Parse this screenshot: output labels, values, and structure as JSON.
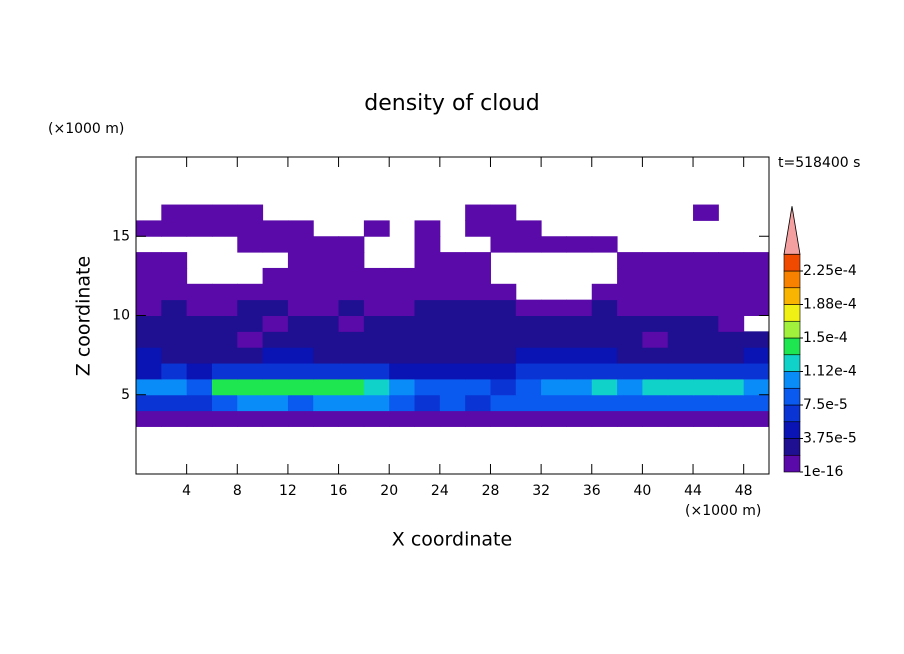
{
  "chart_data": {
    "type": "contour",
    "title": "density of cloud",
    "x_label": "X coordinate",
    "y_label": "Z coordinate",
    "x_unit": "(×1000 m)",
    "y_unit": "(×1000 m)",
    "time_label": "t=518400 s",
    "xlim": [
      0,
      50
    ],
    "ylim": [
      0,
      20
    ],
    "xticks": [
      4,
      8,
      12,
      16,
      20,
      24,
      28,
      32,
      36,
      40,
      44,
      48
    ],
    "yticks": [
      5,
      10,
      15
    ],
    "x": [
      1,
      3,
      5,
      7,
      9,
      11,
      13,
      15,
      17,
      19,
      21,
      23,
      25,
      27,
      29,
      31,
      33,
      35,
      37,
      39,
      41,
      43,
      45,
      47,
      49
    ],
    "z": [
      3.5,
      4.5,
      5.5,
      6.5,
      7.5,
      8.5,
      9.5,
      10.5,
      11.5,
      12.5,
      13.5,
      14.5,
      15.5,
      16.5
    ],
    "values": [
      [
        1e-05,
        1e-05,
        1e-05,
        1e-05,
        1e-05,
        1e-05,
        1e-05,
        1e-05,
        1e-05,
        1e-05,
        1e-05,
        1e-05,
        1e-05,
        1e-05,
        1e-05,
        1e-05,
        1e-05,
        1e-05,
        1e-05,
        1e-05,
        1e-05,
        1e-05,
        1e-05,
        1e-05,
        1e-05
      ],
      [
        6.5e-05,
        6.5e-05,
        6.5e-05,
        8.5e-05,
        0.000105,
        0.000105,
        8.5e-05,
        0.000105,
        0.000105,
        0.000105,
        8.5e-05,
        6.5e-05,
        8.5e-05,
        6.5e-05,
        8.5e-05,
        8.5e-05,
        8.5e-05,
        8.5e-05,
        8.5e-05,
        8.5e-05,
        8.5e-05,
        8.5e-05,
        8.5e-05,
        8.5e-05,
        8.5e-05
      ],
      [
        0.000105,
        0.000105,
        8.5e-05,
        0.00014,
        0.00014,
        0.00014,
        0.00014,
        0.00014,
        0.00014,
        0.000125,
        0.000105,
        8.5e-05,
        8.5e-05,
        8.5e-05,
        6.5e-05,
        8.5e-05,
        0.000105,
        0.000105,
        0.000125,
        0.000105,
        0.000125,
        0.000125,
        0.000125,
        0.000125,
        0.000105
      ],
      [
        4.5e-05,
        6.5e-05,
        4.5e-05,
        6.5e-05,
        6.5e-05,
        6.5e-05,
        6.5e-05,
        6.5e-05,
        6.5e-05,
        6.5e-05,
        4.5e-05,
        4.5e-05,
        4.5e-05,
        4.5e-05,
        4.5e-05,
        6.5e-05,
        6.5e-05,
        6.5e-05,
        6.5e-05,
        6.5e-05,
        6.5e-05,
        6.5e-05,
        6.5e-05,
        6.5e-05,
        6.5e-05
      ],
      [
        4.5e-05,
        2.5e-05,
        2.5e-05,
        2.5e-05,
        2.5e-05,
        4.5e-05,
        4.5e-05,
        2.5e-05,
        2.5e-05,
        2.5e-05,
        2.5e-05,
        2.5e-05,
        2.5e-05,
        2.5e-05,
        2.5e-05,
        4.5e-05,
        4.5e-05,
        4.5e-05,
        4.5e-05,
        2.5e-05,
        2.5e-05,
        2.5e-05,
        2.5e-05,
        2.5e-05,
        4.5e-05
      ],
      [
        2.5e-05,
        2.5e-05,
        2.5e-05,
        2.5e-05,
        6e-06,
        2.5e-05,
        2.5e-05,
        2.5e-05,
        2.5e-05,
        2.5e-05,
        2.5e-05,
        2.5e-05,
        2.5e-05,
        2.5e-05,
        2.5e-05,
        2.5e-05,
        2.5e-05,
        2.5e-05,
        2.5e-05,
        2.5e-05,
        6e-06,
        2.5e-05,
        2.5e-05,
        2.5e-05,
        2.5e-05
      ],
      [
        2.5e-05,
        2.5e-05,
        2.5e-05,
        2.5e-05,
        2.5e-05,
        6e-06,
        2.5e-05,
        2.5e-05,
        6e-06,
        2.5e-05,
        2.5e-05,
        2.5e-05,
        2.5e-05,
        2.5e-05,
        2.5e-05,
        2.5e-05,
        2.5e-05,
        2.5e-05,
        2.5e-05,
        2.5e-05,
        2.5e-05,
        2.5e-05,
        2.5e-05,
        6e-06,
        null
      ],
      [
        6e-06,
        2.5e-05,
        6e-06,
        6e-06,
        2.5e-05,
        2.5e-05,
        6e-06,
        6e-06,
        2.5e-05,
        6e-06,
        6e-06,
        2.5e-05,
        2.5e-05,
        2.5e-05,
        2.5e-05,
        6e-06,
        6e-06,
        6e-06,
        2.5e-05,
        6e-06,
        6e-06,
        6e-06,
        6e-06,
        6e-06,
        6e-06
      ],
      [
        6e-06,
        6e-06,
        6e-06,
        6e-06,
        6e-06,
        6e-06,
        6e-06,
        6e-06,
        6e-06,
        6e-06,
        6e-06,
        6e-06,
        6e-06,
        6e-06,
        6e-06,
        null,
        null,
        null,
        6e-06,
        6e-06,
        6e-06,
        6e-06,
        6e-06,
        6e-06,
        6e-06
      ],
      [
        6e-06,
        6e-06,
        null,
        null,
        null,
        6e-06,
        6e-06,
        6e-06,
        6e-06,
        6e-06,
        6e-06,
        6e-06,
        6e-06,
        6e-06,
        null,
        null,
        null,
        null,
        null,
        6e-06,
        6e-06,
        6e-06,
        6e-06,
        6e-06,
        6e-06
      ],
      [
        6e-06,
        6e-06,
        null,
        null,
        null,
        null,
        6e-06,
        6e-06,
        6e-06,
        null,
        null,
        6e-06,
        6e-06,
        6e-06,
        null,
        null,
        null,
        null,
        null,
        6e-06,
        6e-06,
        6e-06,
        6e-06,
        6e-06,
        6e-06
      ],
      [
        null,
        null,
        null,
        null,
        6e-06,
        6e-06,
        6e-06,
        6e-06,
        6e-06,
        null,
        null,
        6e-06,
        null,
        null,
        6e-06,
        6e-06,
        6e-06,
        6e-06,
        6e-06,
        null,
        null,
        null,
        null,
        null,
        null
      ],
      [
        6e-06,
        6e-06,
        6e-06,
        6e-06,
        6e-06,
        6e-06,
        6e-06,
        null,
        null,
        6e-06,
        null,
        6e-06,
        null,
        6e-06,
        6e-06,
        6e-06,
        null,
        null,
        null,
        null,
        null,
        null,
        null,
        null,
        null
      ],
      [
        null,
        6e-06,
        6e-06,
        6e-06,
        6e-06,
        null,
        null,
        null,
        null,
        null,
        null,
        null,
        null,
        6e-06,
        6e-06,
        null,
        null,
        null,
        null,
        null,
        null,
        null,
        6e-06,
        null,
        null
      ]
    ],
    "levels": [
      1e-16,
      1.875e-05,
      3.75e-05,
      5.625e-05,
      7.5e-05,
      9.375e-05,
      0.0001125,
      0.00013125,
      0.00015,
      0.00016875,
      0.0001875,
      0.00020625,
      0.000225,
      0.00024375
    ],
    "colors": [
      "#5a0aa8",
      "#1e1090",
      "#0a14b4",
      "#0a34d4",
      "#0a5af0",
      "#0a8cf8",
      "#10d2c8",
      "#1ee650",
      "#a0f03c",
      "#f0f014",
      "#f8b400",
      "#f88200",
      "#f04a00",
      "#f4a0a0"
    ],
    "colorbar_ticks": [
      {
        "value": 1e-16,
        "label": "1e-16"
      },
      {
        "value": 3.75e-05,
        "label": "3.75e-5"
      },
      {
        "value": 7.5e-05,
        "label": "7.5e-5"
      },
      {
        "value": 0.0001125,
        "label": "1.12e-4"
      },
      {
        "value": 0.00015,
        "label": "1.5e-4"
      },
      {
        "value": 0.0001875,
        "label": "1.88e-4"
      },
      {
        "value": 0.000225,
        "label": "2.25e-4"
      }
    ]
  }
}
